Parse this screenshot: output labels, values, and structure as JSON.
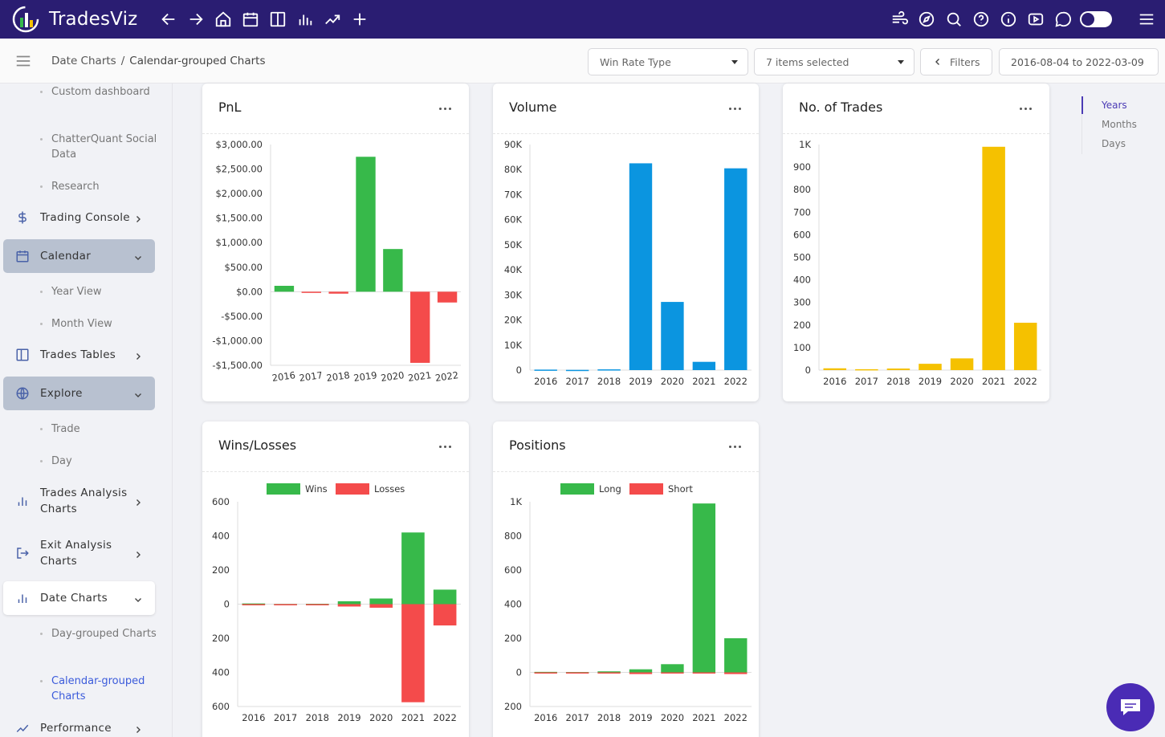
{
  "app": {
    "name": "TradesViz"
  },
  "breadcrumb": {
    "parent": "Date Charts",
    "separator": "/",
    "current": "Calendar-grouped Charts"
  },
  "controls": {
    "win_rate_type": "Win Rate Type",
    "items_selected": "7 items selected",
    "filters": "Filters",
    "date_range": "2016-08-04 to 2022-03-09"
  },
  "sidebar": {
    "items": [
      {
        "type": "sub",
        "label": "Custom dashboard"
      },
      {
        "type": "sub",
        "label": "ChatterQuant Social Data"
      },
      {
        "type": "sub",
        "label": "Research"
      },
      {
        "type": "item",
        "label": "Trading Console",
        "icon": "dollar-icon"
      },
      {
        "type": "item",
        "label": "Calendar",
        "icon": "calendar-icon",
        "expanded": true
      },
      {
        "type": "sub",
        "label": "Year View"
      },
      {
        "type": "sub",
        "label": "Month View"
      },
      {
        "type": "item",
        "label": "Trades Tables",
        "icon": "table-icon"
      },
      {
        "type": "item",
        "label": "Explore",
        "icon": "globe-icon",
        "expanded": true
      },
      {
        "type": "sub",
        "label": "Trade"
      },
      {
        "type": "sub",
        "label": "Day"
      },
      {
        "type": "item",
        "label": "Trades Analysis Charts",
        "icon": "bar-chart-icon"
      },
      {
        "type": "item",
        "label": "Exit Analysis Charts",
        "icon": "exit-icon"
      },
      {
        "type": "item",
        "label": "Date Charts",
        "icon": "bar-chart-icon",
        "expanded": true
      },
      {
        "type": "sub",
        "label": "Day-grouped Charts"
      },
      {
        "type": "sub",
        "label": "Calendar-grouped Charts",
        "active": true
      },
      {
        "type": "item",
        "label": "Performance",
        "icon": "trend-icon"
      }
    ]
  },
  "side_tabs": [
    {
      "label": "Years",
      "active": true
    },
    {
      "label": "Months"
    },
    {
      "label": "Days"
    }
  ],
  "colors": {
    "green": "#37b94a",
    "red": "#f44b4b",
    "blue": "#0b95e0",
    "yellow": "#f5c100",
    "topbar": "#2a1d72"
  },
  "chart_data": [
    {
      "type": "bar",
      "title": "PnL",
      "categories": [
        "2016",
        "2017",
        "2018",
        "2019",
        "2020",
        "2021",
        "2022"
      ],
      "values": [
        120,
        -20,
        -40,
        2750,
        870,
        -1450,
        -220
      ],
      "ylim": [
        -1500,
        3000
      ],
      "yticks": [
        3000,
        2500,
        2000,
        1500,
        1000,
        500,
        0,
        -500,
        -1000,
        -1500
      ],
      "ytick_labels": [
        "$3,000.00",
        "$2,500.00",
        "$2,000.00",
        "$1,500.00",
        "$1,000.00",
        "$500.00",
        "$0.00",
        "-$500.00",
        "-$1,000.00",
        "-$1,500.00"
      ],
      "colors": {
        "positive": "#37b94a",
        "negative": "#f44b4b"
      },
      "xlabel": "",
      "ylabel": ""
    },
    {
      "type": "bar",
      "title": "Volume",
      "categories": [
        "2016",
        "2017",
        "2018",
        "2019",
        "2020",
        "2021",
        "2022"
      ],
      "values": [
        200,
        100,
        300,
        82500,
        27200,
        3300,
        80500
      ],
      "ylim": [
        0,
        90000
      ],
      "yticks": [
        90000,
        80000,
        70000,
        60000,
        50000,
        40000,
        30000,
        20000,
        10000,
        0
      ],
      "ytick_labels": [
        "90K",
        "80K",
        "70K",
        "60K",
        "50K",
        "40K",
        "30K",
        "20K",
        "10K",
        "0"
      ],
      "color": "#0b95e0",
      "xlabel": "",
      "ylabel": ""
    },
    {
      "type": "bar",
      "title": "No. of Trades",
      "categories": [
        "2016",
        "2017",
        "2018",
        "2019",
        "2020",
        "2021",
        "2022"
      ],
      "values": [
        8,
        4,
        7,
        28,
        52,
        990,
        210
      ],
      "ylim": [
        0,
        1000
      ],
      "yticks": [
        1000,
        900,
        800,
        700,
        600,
        500,
        400,
        300,
        200,
        100,
        0
      ],
      "ytick_labels": [
        "1K",
        "900",
        "800",
        "700",
        "600",
        "500",
        "400",
        "300",
        "200",
        "100",
        "0"
      ],
      "color": "#f5c100",
      "xlabel": "",
      "ylabel": ""
    },
    {
      "type": "bar",
      "title": "Wins/Losses",
      "categories": [
        "2016",
        "2017",
        "2018",
        "2019",
        "2020",
        "2021",
        "2022"
      ],
      "series": [
        {
          "name": "Wins",
          "values": [
            4,
            1,
            2,
            17,
            33,
            420,
            85
          ],
          "color": "#37b94a"
        },
        {
          "name": "Losses",
          "values": [
            4,
            3,
            4,
            14,
            21,
            575,
            125
          ],
          "color": "#f44b4b"
        }
      ],
      "ylim": [
        -600,
        600
      ],
      "yticks": [
        600,
        400,
        200,
        0,
        -200,
        -400,
        -600
      ],
      "ytick_labels": [
        "600",
        "400",
        "200",
        "0",
        "200",
        "400",
        "600"
      ],
      "legend": "top-center",
      "xlabel": "",
      "ylabel": ""
    },
    {
      "type": "bar",
      "title": "Positions",
      "categories": [
        "2016",
        "2017",
        "2018",
        "2019",
        "2020",
        "2021",
        "2022"
      ],
      "series": [
        {
          "name": "Long",
          "values": [
            3,
            2,
            6,
            18,
            48,
            990,
            200
          ],
          "color": "#37b94a"
        },
        {
          "name": "Short",
          "values": [
            5,
            2,
            1,
            10,
            4,
            3,
            10
          ],
          "color": "#f44b4b"
        }
      ],
      "ylim": [
        -200,
        1000
      ],
      "yticks": [
        1000,
        800,
        600,
        400,
        200,
        0,
        -200
      ],
      "ytick_labels": [
        "1K",
        "800",
        "600",
        "400",
        "200",
        "0",
        "200"
      ],
      "legend": "top-center",
      "xlabel": "",
      "ylabel": ""
    }
  ]
}
